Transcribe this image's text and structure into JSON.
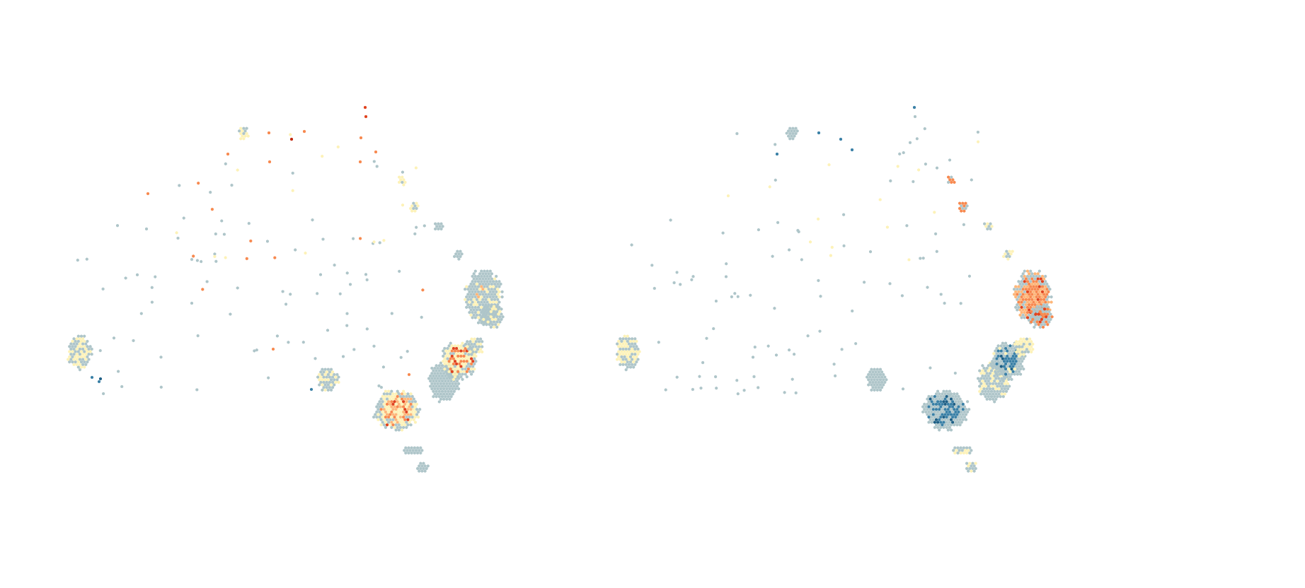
{
  "figure": {
    "panels": [
      {
        "id": "left",
        "description_visible_text": "",
        "palette": [
          "#aec5c9",
          "#fdf2b8",
          "#fdb77a",
          "#f7894f",
          "#e0431f",
          "#c2280e",
          "#3a80a6",
          "#1e5f85"
        ]
      },
      {
        "id": "right",
        "description_visible_text": "",
        "palette": [
          "#aec5c9",
          "#fdf2b8",
          "#fdb77a",
          "#f7894f",
          "#e0431f",
          "#c2280e",
          "#3a80a6",
          "#1e5f85"
        ]
      }
    ]
  },
  "colors": {
    "neutral": "#aec5c9",
    "light": "#fdf2b8",
    "orange_light": "#fdb77a",
    "orange": "#f7894f",
    "red": "#e0431f",
    "dark_red": "#c2280e",
    "blue": "#3a80a6",
    "dark_blue": "#1e5f85",
    "background": "#ffffff"
  }
}
